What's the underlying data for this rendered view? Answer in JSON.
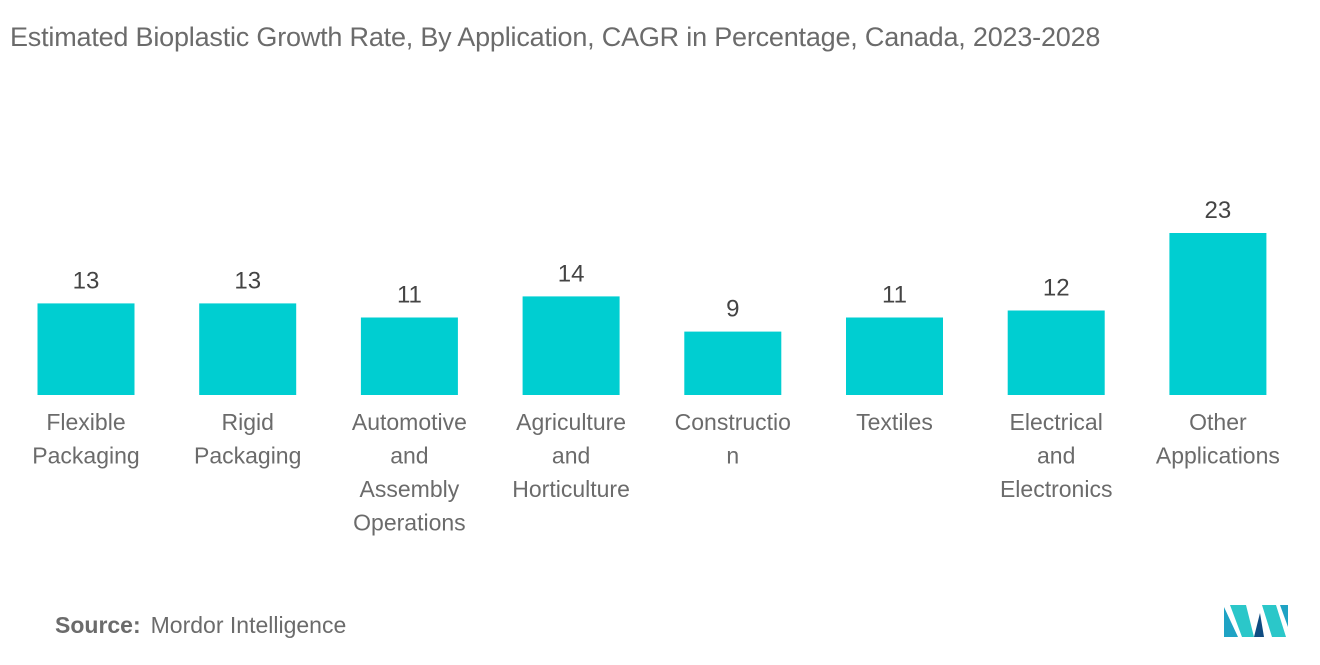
{
  "chart_data": {
    "type": "bar",
    "title": "Estimated Bioplastic Growth Rate, By Application, CAGR in Percentage, Canada, 2023-2028",
    "categories": [
      [
        "Flexible",
        "Packaging"
      ],
      [
        "Rigid",
        "Packaging"
      ],
      [
        "Automotive",
        "and",
        "Assembly",
        "Operations"
      ],
      [
        "Agriculture",
        "and",
        "Horticulture"
      ],
      [
        "Constructio",
        "n"
      ],
      [
        "Textiles"
      ],
      [
        "Electrical",
        "and",
        "Electronics"
      ],
      [
        "Other",
        "Applications"
      ]
    ],
    "values": [
      13,
      13,
      11,
      14,
      9,
      11,
      12,
      23
    ],
    "xlabel": "",
    "ylabel": "",
    "ylim": [
      0,
      23
    ],
    "grid": false,
    "legend": "none",
    "bar_color": "#00ced1"
  },
  "source": {
    "label": "Source:",
    "value": "Mordor Intelligence"
  },
  "logo": {
    "icon": "mordor-intelligence-logo-icon",
    "colors": [
      "#1fa3c4",
      "#2bc7c9",
      "#0f4c81"
    ]
  }
}
